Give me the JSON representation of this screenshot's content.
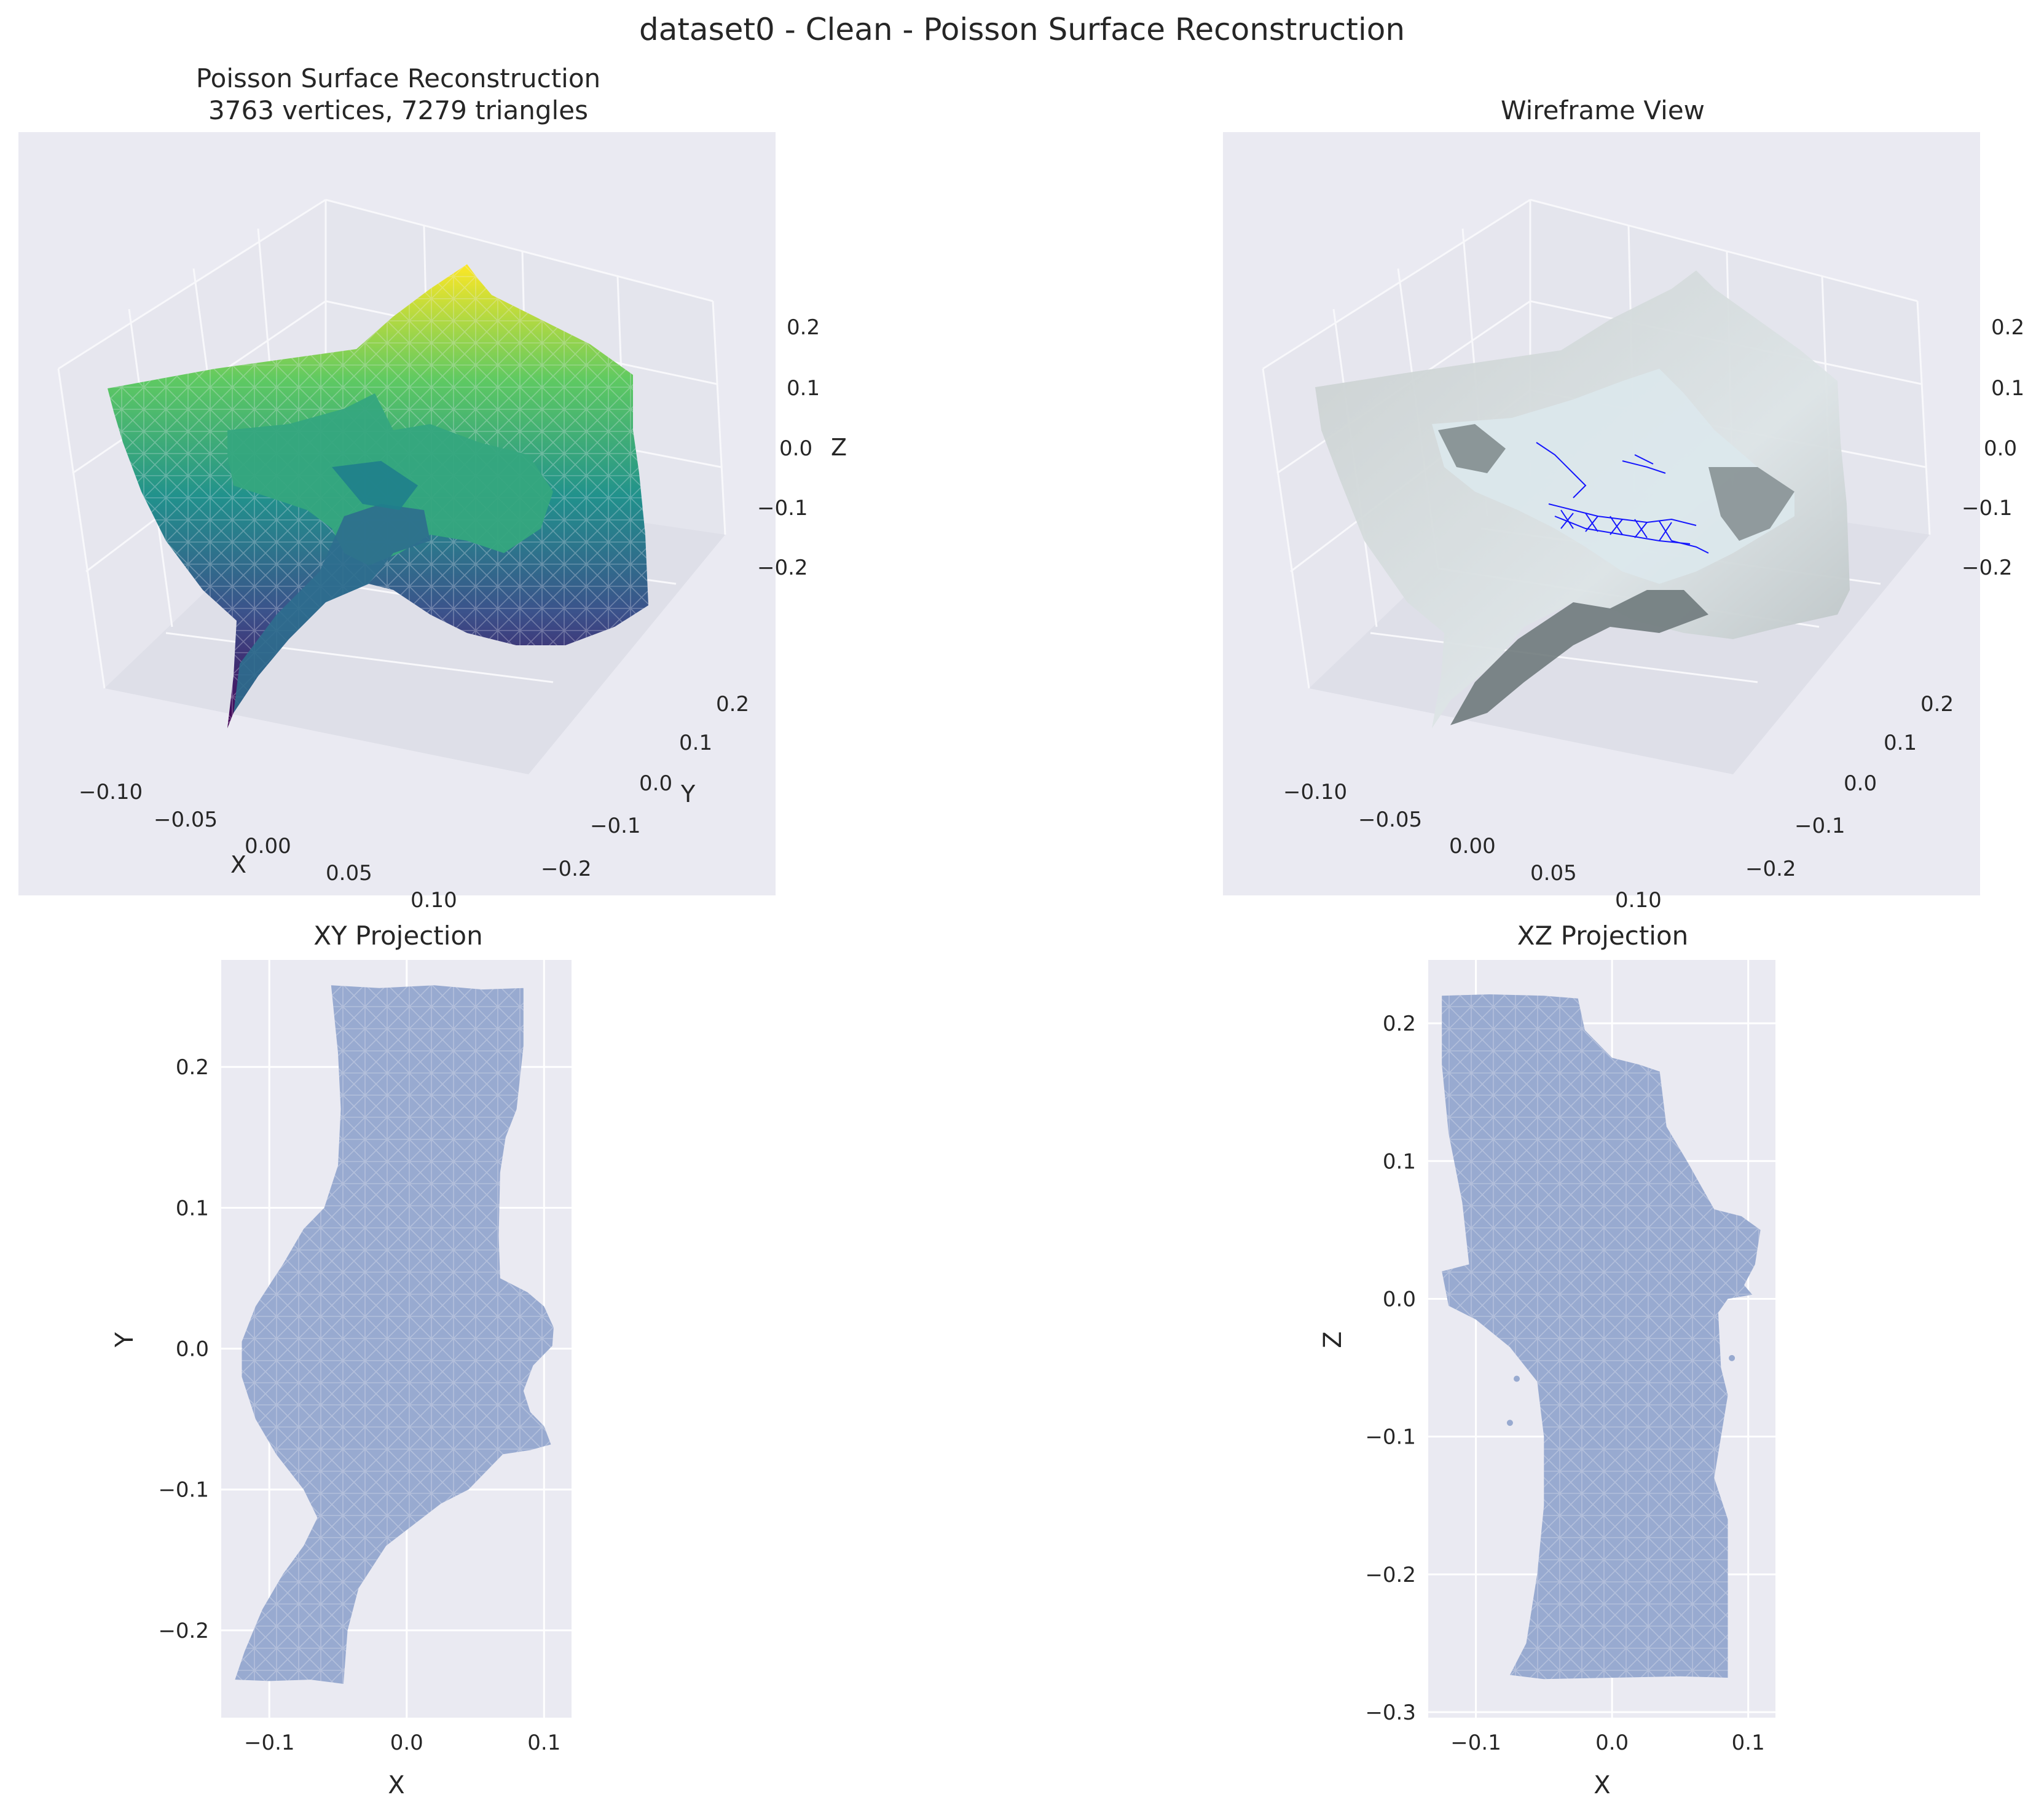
{
  "figure": {
    "suptitle": "dataset0 - Clean - Poisson Surface Reconstruction",
    "colors": {
      "axes_bg": "#EAEAF2",
      "grid": "#FFFFFF",
      "text": "#262626",
      "projection_fill": "#98AAD0",
      "wireframe_line": "#0000FF",
      "mesh_gray": "#B4BCBC",
      "mesh_gray_dark": "#6A7476",
      "viridis": [
        "#440154",
        "#3B528B",
        "#21918C",
        "#5EC962",
        "#FDE725"
      ]
    },
    "icons": [
      "3d-axes-panel",
      "mesh-surface",
      "mesh-wireframe"
    ]
  },
  "chart_data": [
    {
      "type": "3d-surface",
      "title": "Poisson Surface Reconstruction\n3763 vertices, 7279 triangles",
      "title_lines": [
        "Poisson Surface Reconstruction",
        "3763 vertices, 7279 triangles"
      ],
      "vertices": 3763,
      "triangles": 7279,
      "colormap": "viridis",
      "xlabel": "X",
      "ylabel": "Y",
      "zlabel": "Z",
      "xticks": [
        "−0.10",
        "−0.05",
        "0.00",
        "0.05",
        "0.10"
      ],
      "yticks": [
        "−0.2",
        "−0.1",
        "0.0",
        "0.1",
        "0.2"
      ],
      "zticks": [
        "−0.2",
        "−0.1",
        "0.0",
        "0.1",
        "0.2"
      ],
      "grid": true
    },
    {
      "type": "3d-wireframe",
      "title": "Wireframe View",
      "xlabel": "",
      "ylabel": "",
      "zlabel": "",
      "xticks": [
        "−0.10",
        "−0.05",
        "0.00",
        "0.05",
        "0.10"
      ],
      "yticks": [
        "−0.2",
        "−0.1",
        "0.0",
        "0.1",
        "0.2"
      ],
      "zticks": [
        "−0.2",
        "−0.1",
        "0.0",
        "0.1",
        "0.2"
      ],
      "grid": true
    },
    {
      "type": "area",
      "title": "XY Projection",
      "xlabel": "X",
      "ylabel": "Y",
      "xlim": [
        -0.135,
        0.12
      ],
      "ylim": [
        -0.262,
        0.276
      ],
      "xticks": [
        -0.1,
        0.0,
        0.1
      ],
      "xtick_labels": [
        "−0.1",
        "0.0",
        "0.1"
      ],
      "yticks": [
        -0.2,
        -0.1,
        0.0,
        0.1,
        0.2
      ],
      "ytick_labels": [
        "−0.2",
        "−0.1",
        "0.0",
        "0.1",
        "0.2"
      ],
      "grid": true,
      "outline": [
        [
          -0.055,
          0.258
        ],
        [
          -0.02,
          0.256
        ],
        [
          0.02,
          0.258
        ],
        [
          0.055,
          0.255
        ],
        [
          0.085,
          0.256
        ],
        [
          0.085,
          0.215
        ],
        [
          0.08,
          0.17
        ],
        [
          0.072,
          0.15
        ],
        [
          0.068,
          0.125
        ],
        [
          0.067,
          0.08
        ],
        [
          0.068,
          0.05
        ],
        [
          0.088,
          0.04
        ],
        [
          0.1,
          0.03
        ],
        [
          0.107,
          0.015
        ],
        [
          0.106,
          0.002
        ],
        [
          0.092,
          -0.012
        ],
        [
          0.085,
          -0.03
        ],
        [
          0.09,
          -0.045
        ],
        [
          0.1,
          -0.055
        ],
        [
          0.105,
          -0.068
        ],
        [
          0.09,
          -0.072
        ],
        [
          0.07,
          -0.075
        ],
        [
          0.045,
          -0.1
        ],
        [
          0.025,
          -0.11
        ],
        [
          0.005,
          -0.125
        ],
        [
          -0.015,
          -0.14
        ],
        [
          -0.035,
          -0.17
        ],
        [
          -0.043,
          -0.2
        ],
        [
          -0.046,
          -0.238
        ],
        [
          -0.07,
          -0.235
        ],
        [
          -0.1,
          -0.236
        ],
        [
          -0.125,
          -0.235
        ],
        [
          -0.118,
          -0.215
        ],
        [
          -0.105,
          -0.185
        ],
        [
          -0.09,
          -0.16
        ],
        [
          -0.075,
          -0.14
        ],
        [
          -0.065,
          -0.12
        ],
        [
          -0.075,
          -0.1
        ],
        [
          -0.095,
          -0.075
        ],
        [
          -0.11,
          -0.05
        ],
        [
          -0.12,
          -0.02
        ],
        [
          -0.12,
          0.005
        ],
        [
          -0.11,
          0.03
        ],
        [
          -0.1,
          0.045
        ],
        [
          -0.09,
          0.06
        ],
        [
          -0.075,
          0.085
        ],
        [
          -0.06,
          0.1
        ],
        [
          -0.05,
          0.13
        ],
        [
          -0.048,
          0.17
        ],
        [
          -0.05,
          0.21
        ]
      ]
    },
    {
      "type": "area",
      "title": "XZ Projection",
      "xlabel": "X",
      "ylabel": "Z",
      "xlim": [
        -0.135,
        0.12
      ],
      "ylim": [
        -0.304,
        0.246
      ],
      "xticks": [
        -0.1,
        0.0,
        0.1
      ],
      "xtick_labels": [
        "−0.1",
        "0.0",
        "0.1"
      ],
      "yticks": [
        -0.3,
        -0.2,
        -0.1,
        0.0,
        0.1,
        0.2
      ],
      "ytick_labels": [
        "−0.3",
        "−0.2",
        "−0.1",
        "0.0",
        "0.1",
        "0.2"
      ],
      "grid": true,
      "outline": [
        [
          -0.125,
          0.22
        ],
        [
          -0.09,
          0.221
        ],
        [
          -0.05,
          0.22
        ],
        [
          -0.025,
          0.218
        ],
        [
          -0.02,
          0.195
        ],
        [
          0.0,
          0.175
        ],
        [
          0.02,
          0.17
        ],
        [
          0.035,
          0.165
        ],
        [
          0.04,
          0.125
        ],
        [
          0.055,
          0.1
        ],
        [
          0.075,
          0.065
        ],
        [
          0.095,
          0.06
        ],
        [
          0.109,
          0.05
        ],
        [
          0.105,
          0.025
        ],
        [
          0.097,
          0.01
        ],
        [
          0.103,
          0.003
        ],
        [
          0.085,
          0.0
        ],
        [
          0.078,
          -0.01
        ],
        [
          0.08,
          -0.05
        ],
        [
          0.085,
          -0.07
        ],
        [
          0.08,
          -0.1
        ],
        [
          0.075,
          -0.13
        ],
        [
          0.085,
          -0.16
        ],
        [
          0.085,
          -0.2
        ],
        [
          0.085,
          -0.275
        ],
        [
          0.05,
          -0.274
        ],
        [
          0.0,
          -0.275
        ],
        [
          -0.05,
          -0.276
        ],
        [
          -0.075,
          -0.273
        ],
        [
          -0.063,
          -0.25
        ],
        [
          -0.055,
          -0.2
        ],
        [
          -0.05,
          -0.15
        ],
        [
          -0.05,
          -0.1
        ],
        [
          -0.055,
          -0.06
        ],
        [
          -0.075,
          -0.035
        ],
        [
          -0.1,
          -0.015
        ],
        [
          -0.12,
          -0.005
        ],
        [
          -0.125,
          0.02
        ],
        [
          -0.105,
          0.025
        ],
        [
          -0.11,
          0.07
        ],
        [
          -0.12,
          0.12
        ],
        [
          -0.125,
          0.17
        ]
      ],
      "islands": [
        [
          -0.07,
          -0.058
        ],
        [
          -0.075,
          -0.09
        ],
        [
          0.088,
          -0.043
        ]
      ]
    }
  ]
}
